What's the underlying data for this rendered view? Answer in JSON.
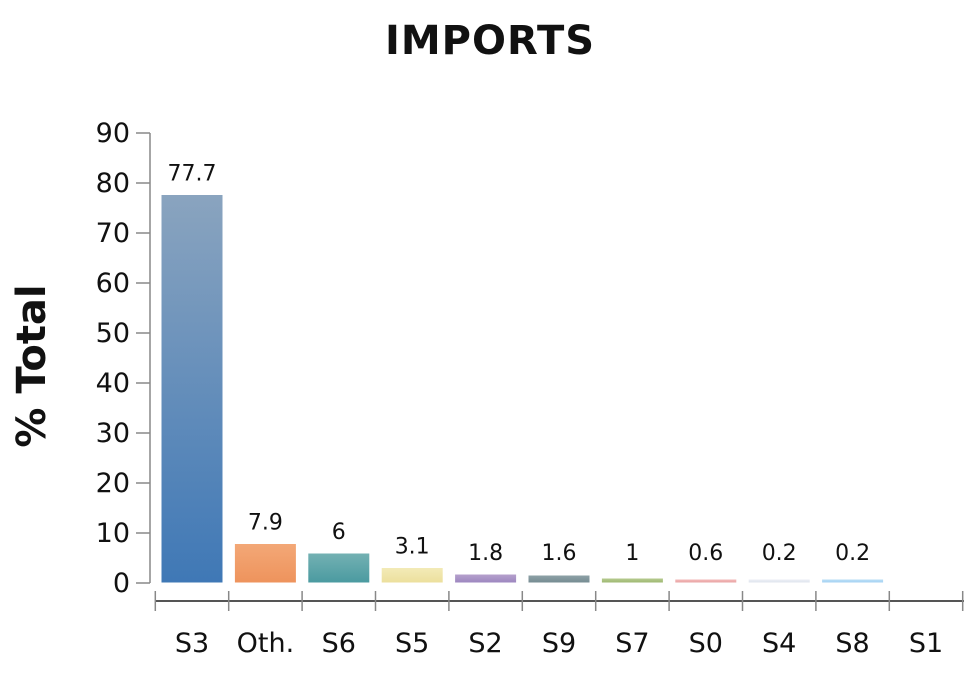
{
  "chart_data": {
    "type": "bar",
    "title": "IMPORTS",
    "ylabel": "% Total",
    "xlabel": "",
    "ylim": [
      0,
      90
    ],
    "yticks": [
      0,
      10,
      20,
      30,
      40,
      50,
      60,
      70,
      80,
      90
    ],
    "categories": [
      "S3",
      "Oth.",
      "S6",
      "S5",
      "S2",
      "S9",
      "S7",
      "S0",
      "S4",
      "S8",
      "S1"
    ],
    "values": [
      77.7,
      7.9,
      6,
      3.1,
      1.8,
      1.6,
      1,
      0.6,
      0.2,
      0.2,
      0
    ],
    "data_labels": [
      "77.7",
      "7.9",
      "6",
      "3.1",
      "1.8",
      "1.6",
      "1",
      "0.6",
      "0.2",
      "0.2",
      ""
    ],
    "colors": [
      [
        "#8aa4bf",
        "#3f78b6"
      ],
      [
        "#f3a877",
        "#ee935c"
      ],
      [
        "#74b1b3",
        "#4a9aa0"
      ],
      [
        "#f3ebb8",
        "#ecdf9c"
      ],
      [
        "#b6a2cd",
        "#9c85bf"
      ],
      [
        "#8fa3a8",
        "#748a91"
      ],
      [
        "#b9cd93",
        "#9bb66e"
      ],
      [
        "#f5bcbc",
        "#e7a1a1"
      ],
      [
        "#eef1f7",
        "#dde2ec"
      ],
      [
        "#bcdff7",
        "#a3d1f2"
      ],
      [
        "#dddddd",
        "#cccccc"
      ]
    ],
    "grid": false,
    "legend": "none"
  }
}
